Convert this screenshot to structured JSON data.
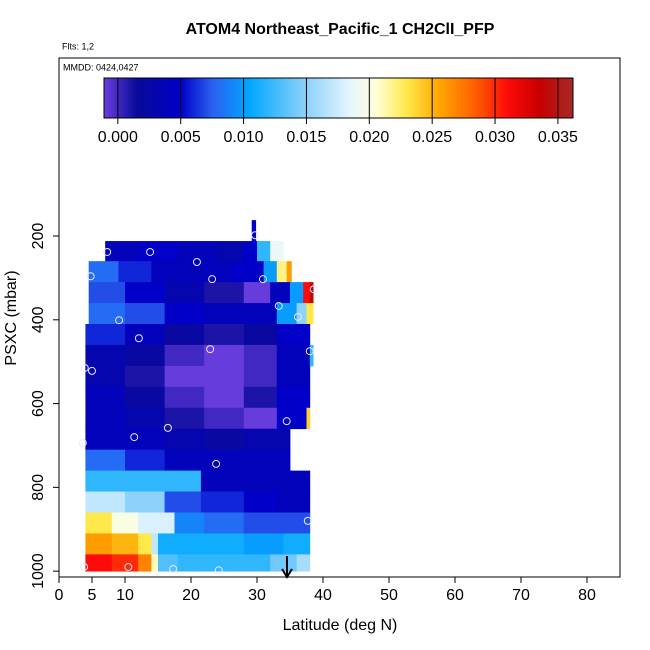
{
  "chart_data": {
    "type": "curtain",
    "title": "ATOM4 Northeast_Pacific_1 CH2ClI_PFP",
    "flights_label": "Flts: 1,2",
    "dates_label": "MMDD: 0424,0427",
    "x_label": "Latitude (deg N)",
    "y_label": "PSXC (mbar)",
    "xlim": [
      0,
      85
    ],
    "ylim": [
      1014,
      -225
    ],
    "xticks": [
      0,
      5,
      10,
      20,
      30,
      40,
      50,
      60,
      70,
      80
    ],
    "yticks": [
      200,
      400,
      600,
      800,
      1000
    ],
    "colorbar_lim": [
      -0.0011,
      0.0362
    ],
    "colorbar_ticks": [
      {
        "value": 0,
        "label": "0.000"
      },
      {
        "value": 0.005,
        "label": "0.005"
      },
      {
        "value": 0.01,
        "label": "0.010"
      },
      {
        "value": 0.015,
        "label": "0.015"
      },
      {
        "value": 0.02,
        "label": "0.020"
      },
      {
        "value": 0.025,
        "label": "0.025"
      },
      {
        "value": 0.03,
        "label": "0.030"
      },
      {
        "value": 0.035,
        "label": "0.035"
      }
    ],
    "colorscale": [
      [
        -0.0011,
        "#6a3ee0"
      ],
      [
        0.0015,
        "#0a0a9a"
      ],
      [
        0.005,
        "#0000c8"
      ],
      [
        0.0075,
        "#2a60f0"
      ],
      [
        0.0105,
        "#00a8ff"
      ],
      [
        0.0145,
        "#80cdfa"
      ],
      [
        0.0185,
        "#e6f6ff"
      ],
      [
        0.0205,
        "#ffffd8"
      ],
      [
        0.023,
        "#ffe84a"
      ],
      [
        0.0255,
        "#ffa800"
      ],
      [
        0.028,
        "#ff6a00"
      ],
      [
        0.031,
        "#ff0a0a"
      ],
      [
        0.0335,
        "#c80000"
      ],
      [
        0.0362,
        "#a82828"
      ]
    ],
    "rows": [
      {
        "p": [
          162,
          212
        ],
        "lat": [
          29.2,
          29.8
        ],
        "values": [
          0.005
        ]
      },
      {
        "p": [
          212,
          260
        ],
        "lat": [
          7,
          12,
          18,
          24,
          28,
          30,
          32,
          34
        ],
        "values": [
          0.004,
          0.005,
          0.004,
          0.003,
          0.005,
          0.012,
          0.019
        ]
      },
      {
        "p": [
          260,
          310
        ],
        "lat": [
          4.5,
          9,
          14,
          20,
          26,
          31,
          33,
          34.5,
          35.2
        ],
        "values": [
          0.008,
          0.006,
          0.004,
          0.004,
          0.005,
          0.01,
          0.022,
          0.026
        ]
      },
      {
        "p": [
          310,
          360
        ],
        "lat": [
          4.5,
          10,
          16,
          22,
          28,
          32,
          35,
          37,
          38,
          38.5
        ],
        "values": [
          0.007,
          0.005,
          0.003,
          0.001,
          -0.001,
          0.004,
          0.01,
          0.031,
          0.034
        ]
      },
      {
        "p": [
          360,
          410
        ],
        "lat": [
          4.5,
          10,
          16,
          22,
          28,
          33,
          36,
          37.5,
          38.5
        ],
        "values": [
          0.008,
          0.007,
          0.005,
          0.004,
          0.004,
          0.01,
          0.015,
          0.023
        ]
      },
      {
        "p": [
          410,
          460
        ],
        "lat": [
          4,
          10,
          16,
          22,
          28,
          33,
          38
        ],
        "values": [
          0.006,
          0.004,
          0.002,
          0.001,
          0.002,
          0.005
        ]
      },
      {
        "p": [
          460,
          510
        ],
        "lat": [
          4,
          10,
          16,
          22,
          28,
          33,
          38,
          38.5
        ],
        "values": [
          0.003,
          0.002,
          0,
          -0.001,
          0,
          0.004,
          0.012
        ]
      },
      {
        "p": [
          510,
          560
        ],
        "lat": [
          4,
          10,
          16,
          22,
          28,
          33,
          38
        ],
        "values": [
          0.003,
          0.001,
          -0.001,
          -0.001,
          0,
          0.004
        ]
      },
      {
        "p": [
          560,
          610
        ],
        "lat": [
          4,
          10,
          16,
          22,
          28,
          33,
          38
        ],
        "values": [
          0.004,
          0.002,
          0,
          -0.001,
          0.001,
          0.005
        ]
      },
      {
        "p": [
          610,
          660
        ],
        "lat": [
          4,
          10,
          16,
          22,
          28,
          33,
          37.5,
          38
        ],
        "values": [
          0.004,
          0.003,
          0.001,
          0,
          -0.001,
          0.005,
          0.024
        ]
      },
      {
        "p": [
          660,
          710
        ],
        "lat": [
          4,
          10,
          16,
          22,
          28,
          35
        ],
        "values": [
          0.004,
          0.004,
          0.003,
          0.002,
          0.003
        ]
      },
      {
        "p": [
          710,
          760
        ],
        "lat": [
          4,
          10,
          16,
          22,
          28,
          35
        ],
        "values": [
          0.008,
          0.006,
          0.004,
          0.004,
          0.004
        ]
      },
      {
        "p": [
          760,
          810
        ],
        "lat": [
          4,
          10,
          16,
          21.5,
          28,
          35,
          38
        ],
        "values": [
          0.012,
          0.012,
          0.012,
          0.004,
          0.004,
          0.004
        ]
      },
      {
        "p": [
          810,
          860
        ],
        "lat": [
          4,
          10,
          16,
          21.5,
          28,
          33,
          38
        ],
        "values": [
          0.017,
          0.015,
          0.007,
          0.006,
          0.005,
          0.004
        ]
      },
      {
        "p": [
          860,
          910
        ],
        "lat": [
          4,
          8,
          12,
          17.5,
          22,
          28,
          34,
          38
        ],
        "values": [
          0.023,
          0.02,
          0.018,
          0.009,
          0.008,
          0.007,
          0.007
        ]
      },
      {
        "p": [
          910,
          960
        ],
        "lat": [
          4,
          8,
          12,
          14,
          15,
          22,
          28,
          34,
          38
        ],
        "values": [
          0.026,
          0.025,
          0.023,
          0.017,
          0.011,
          0.011,
          0.01,
          0.011
        ]
      },
      {
        "p": [
          960,
          1000
        ],
        "lat": [
          4,
          8,
          12,
          14,
          15,
          18,
          26,
          32,
          36,
          38
        ],
        "values": [
          0.031,
          0.03,
          0.027,
          0.021,
          0.013,
          0.012,
          0.012,
          0.014,
          0.016
        ]
      }
    ],
    "samples": {
      "lat": [
        7.3,
        13.8,
        20.9,
        23.2,
        30.9,
        29.7,
        4.8,
        9.1,
        36.2,
        33.3,
        38.6,
        12.1,
        22.9,
        38,
        3.9,
        5,
        34.5,
        16.5,
        11.4,
        3.6,
        23.8,
        37.7,
        3.8,
        10.5,
        17.3,
        24.2
      ],
      "p": [
        238,
        238,
        262,
        303,
        303,
        198,
        296,
        401,
        393,
        367,
        327,
        444,
        470,
        475,
        515,
        522,
        642,
        658,
        680,
        694,
        744,
        880,
        990,
        990,
        995,
        998
      ]
    }
  }
}
